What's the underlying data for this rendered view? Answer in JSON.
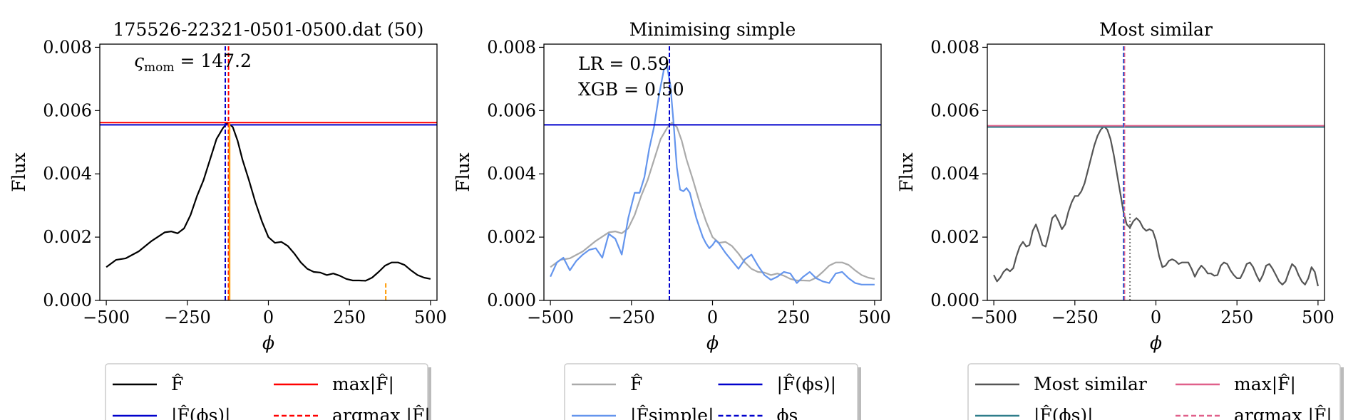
{
  "chart_data": [
    {
      "type": "line",
      "title": "175526-22321-0501-0500.dat (50)",
      "xlabel": "ϕ",
      "ylabel": "Flux",
      "xlim": [
        -520,
        520
      ],
      "ylim": [
        0,
        0.0081
      ],
      "xticks": [
        -500,
        -250,
        0,
        250,
        500
      ],
      "xtick_labels": [
        "−500",
        "−250",
        "0",
        "250",
        "500"
      ],
      "yticks": [
        0,
        0.002,
        0.004,
        0.006,
        0.008
      ],
      "ytick_labels": [
        "0.000",
        "0.002",
        "0.004",
        "0.006",
        "0.008"
      ],
      "annotations": [
        "ς",
        "mom",
        " = 147.2"
      ],
      "series": [
        {
          "name": "F̂",
          "color": "#000000",
          "style": "solid",
          "x": [
            -500,
            -470,
            -440,
            -400,
            -360,
            -320,
            -300,
            -280,
            -260,
            -240,
            -220,
            -200,
            -180,
            -160,
            -140,
            -125,
            -110,
            -95,
            -80,
            -60,
            -40,
            -20,
            0,
            20,
            40,
            60,
            80,
            100,
            120,
            140,
            160,
            180,
            200,
            220,
            240,
            260,
            280,
            300,
            320,
            340,
            360,
            380,
            400,
            420,
            440,
            460,
            480,
            500
          ],
          "y": [
            0.00105,
            0.00128,
            0.00133,
            0.00155,
            0.00188,
            0.00215,
            0.00218,
            0.00212,
            0.00228,
            0.0027,
            0.0033,
            0.0038,
            0.00445,
            0.0051,
            0.00545,
            0.00562,
            0.00548,
            0.00505,
            0.00445,
            0.0038,
            0.0031,
            0.0025,
            0.002,
            0.00182,
            0.00185,
            0.00172,
            0.00148,
            0.0012,
            0.001,
            0.0009,
            0.00088,
            0.0008,
            0.00085,
            0.00078,
            0.00068,
            0.00063,
            0.00063,
            0.00062,
            0.00072,
            0.0009,
            0.0011,
            0.0012,
            0.0012,
            0.00112,
            0.00095,
            0.0008,
            0.00072,
            0.00068
          ]
        },
        {
          "name": "|F̂(ϕs)|",
          "color": "#0000cc",
          "style": "hline",
          "y": 0.00555
        },
        {
          "name": "max|F̂|",
          "color": "#ff0000",
          "style": "hline",
          "y": 0.00562
        },
        {
          "name": "argmax |F̂|",
          "color": "#ff0000",
          "style": "vdash",
          "x": -123
        },
        {
          "name": "ϕs",
          "color": "#0000cc",
          "style": "vdash",
          "x": -133
        },
        {
          "name": "orange",
          "color": "#ff9900",
          "style": "vsolid",
          "x": -120,
          "y": 0.0056
        },
        {
          "name": "orange-dashed",
          "color": "#ff9900",
          "style": "vdash",
          "x": 362,
          "y": 0.0006
        }
      ],
      "legend": {
        "placement": "below",
        "entries": [
          {
            "label": "F̂",
            "color": "#000000",
            "style": "solid"
          },
          {
            "label": "max|F̂|",
            "color": "#ff0000",
            "style": "solid"
          },
          {
            "label": "|F̂(ϕs)|",
            "color": "#0000cc",
            "style": "solid"
          },
          {
            "label": "argmax |F̂|",
            "color": "#ff0000",
            "style": "dash"
          }
        ]
      }
    },
    {
      "type": "line",
      "title": "Minimising simple",
      "xlabel": "ϕ",
      "ylabel": "Flux",
      "xlim": [
        -520,
        520
      ],
      "ylim": [
        0,
        0.0081
      ],
      "xticks": [
        -500,
        -250,
        0,
        250,
        500
      ],
      "xtick_labels": [
        "−500",
        "−250",
        "0",
        "250",
        "500"
      ],
      "yticks": [
        0,
        0.002,
        0.004,
        0.006,
        0.008
      ],
      "ytick_labels": [
        "0.000",
        "0.002",
        "0.004",
        "0.006",
        "0.008"
      ],
      "annotations": [
        "LR = 0.59",
        "XGB = 0.50"
      ],
      "series": [
        {
          "name": "F̂",
          "color": "#aaaaaa",
          "style": "solid",
          "x": [
            -500,
            -470,
            -440,
            -400,
            -360,
            -320,
            -300,
            -280,
            -260,
            -240,
            -220,
            -200,
            -180,
            -160,
            -140,
            -125,
            -110,
            -95,
            -80,
            -60,
            -40,
            -20,
            0,
            20,
            40,
            60,
            80,
            100,
            120,
            140,
            160,
            180,
            200,
            220,
            240,
            260,
            280,
            300,
            320,
            340,
            360,
            380,
            400,
            420,
            440,
            460,
            480,
            500
          ],
          "y": [
            0.00105,
            0.00128,
            0.00133,
            0.00155,
            0.00188,
            0.00215,
            0.00218,
            0.00212,
            0.00228,
            0.0027,
            0.0033,
            0.0038,
            0.00445,
            0.0051,
            0.00545,
            0.00562,
            0.00548,
            0.00505,
            0.00445,
            0.0038,
            0.0031,
            0.0025,
            0.002,
            0.00182,
            0.00185,
            0.00172,
            0.00148,
            0.0012,
            0.001,
            0.0009,
            0.00088,
            0.0008,
            0.00085,
            0.00078,
            0.00068,
            0.00063,
            0.00063,
            0.00062,
            0.00072,
            0.0009,
            0.0011,
            0.0012,
            0.0012,
            0.00112,
            0.00095,
            0.0008,
            0.00072,
            0.00068
          ]
        },
        {
          "name": "|F̂simple|",
          "color": "#6495ed",
          "style": "solid",
          "x": [
            -500,
            -480,
            -460,
            -440,
            -420,
            -400,
            -380,
            -360,
            -340,
            -320,
            -300,
            -280,
            -260,
            -240,
            -225,
            -210,
            -195,
            -180,
            -165,
            -150,
            -140,
            -130,
            -120,
            -110,
            -100,
            -90,
            -80,
            -70,
            -60,
            -50,
            -40,
            -30,
            -20,
            -10,
            0,
            10,
            20,
            40,
            60,
            80,
            100,
            120,
            140,
            160,
            180,
            200,
            220,
            240,
            260,
            280,
            300,
            320,
            340,
            360,
            380,
            400,
            420,
            440,
            460,
            480,
            500
          ],
          "y": [
            0.00075,
            0.0012,
            0.00135,
            0.00095,
            0.00125,
            0.00145,
            0.0016,
            0.00165,
            0.00135,
            0.0021,
            0.00195,
            0.00145,
            0.0026,
            0.0034,
            0.0034,
            0.0039,
            0.0048,
            0.0055,
            0.0065,
            0.0073,
            0.0074,
            0.0068,
            0.0056,
            0.0042,
            0.0035,
            0.00345,
            0.00355,
            0.0034,
            0.003,
            0.0026,
            0.0023,
            0.002,
            0.0018,
            0.00165,
            0.00175,
            0.0019,
            0.0018,
            0.0015,
            0.00125,
            0.001,
            0.0013,
            0.00145,
            0.0011,
            0.0008,
            0.00065,
            0.00075,
            0.0009,
            0.00085,
            0.00055,
            0.00075,
            0.0009,
            0.0007,
            0.0006,
            0.00055,
            0.00085,
            0.0009,
            0.0007,
            0.00055,
            0.0005,
            0.0005,
            0.0005
          ]
        },
        {
          "name": "|F̂(ϕs)|",
          "color": "#0000cc",
          "style": "hline",
          "y": 0.00555
        },
        {
          "name": "ϕs",
          "color": "#0000cc",
          "style": "vdash",
          "x": -133
        }
      ],
      "legend": {
        "placement": "below",
        "entries": [
          {
            "label": "F̂",
            "color": "#aaaaaa",
            "style": "solid"
          },
          {
            "label": "|F̂(ϕs)|",
            "color": "#0000cc",
            "style": "solid"
          },
          {
            "label": "|F̂simple|",
            "color": "#6495ed",
            "style": "solid"
          },
          {
            "label": "ϕs",
            "color": "#0000cc",
            "style": "dash"
          }
        ]
      }
    },
    {
      "type": "line",
      "title": "Most similar",
      "xlabel": "ϕ",
      "ylabel": "Flux",
      "xlim": [
        -520,
        520
      ],
      "ylim": [
        0,
        0.0081
      ],
      "xticks": [
        -500,
        -250,
        0,
        250,
        500
      ],
      "xtick_labels": [
        "−500",
        "−250",
        "0",
        "250",
        "500"
      ],
      "yticks": [
        0,
        0.002,
        0.004,
        0.006,
        0.008
      ],
      "ytick_labels": [
        "0.000",
        "0.002",
        "0.004",
        "0.006",
        "0.008"
      ],
      "annotations": [],
      "series": [
        {
          "name": "Most similar",
          "color": "#555555",
          "style": "solid",
          "x": [
            -500,
            -490,
            -480,
            -470,
            -460,
            -450,
            -440,
            -430,
            -420,
            -410,
            -400,
            -390,
            -380,
            -370,
            -360,
            -350,
            -340,
            -330,
            -320,
            -310,
            -300,
            -290,
            -280,
            -270,
            -260,
            -250,
            -240,
            -230,
            -220,
            -210,
            -200,
            -190,
            -180,
            -170,
            -160,
            -150,
            -140,
            -130,
            -120,
            -110,
            -100,
            -90,
            -80,
            -70,
            -60,
            -50,
            -40,
            -30,
            -20,
            -10,
            0,
            10,
            20,
            30,
            40,
            50,
            60,
            70,
            80,
            90,
            100,
            110,
            120,
            130,
            140,
            150,
            160,
            170,
            180,
            190,
            200,
            210,
            220,
            230,
            240,
            250,
            260,
            270,
            280,
            290,
            300,
            310,
            320,
            330,
            340,
            350,
            360,
            370,
            380,
            390,
            400,
            410,
            420,
            430,
            440,
            450,
            460,
            470,
            480,
            490,
            500
          ],
          "y": [
            0.0008,
            0.0006,
            0.00072,
            0.0009,
            0.001,
            0.00092,
            0.00102,
            0.0014,
            0.0017,
            0.00185,
            0.0017,
            0.00175,
            0.0022,
            0.0024,
            0.0021,
            0.00175,
            0.0017,
            0.0021,
            0.0026,
            0.0027,
            0.0025,
            0.00225,
            0.0024,
            0.0028,
            0.0031,
            0.0033,
            0.0033,
            0.00345,
            0.0037,
            0.0041,
            0.0045,
            0.0049,
            0.0052,
            0.0054,
            0.0055,
            0.0054,
            0.0051,
            0.0046,
            0.004,
            0.0034,
            0.0028,
            0.0024,
            0.0023,
            0.0025,
            0.0026,
            0.0025,
            0.0023,
            0.0022,
            0.00225,
            0.0022,
            0.0019,
            0.0014,
            0.00105,
            0.0011,
            0.00125,
            0.0013,
            0.00125,
            0.00115,
            0.0012,
            0.0012,
            0.0012,
            0.001,
            0.00075,
            0.00095,
            0.0011,
            0.001,
            0.00085,
            0.00085,
            0.00078,
            0.0008,
            0.0011,
            0.0012,
            0.00115,
            0.00095,
            0.0008,
            0.0007,
            0.0007,
            0.0009,
            0.00115,
            0.0012,
            0.00105,
            0.0008,
            0.0006,
            0.0008,
            0.0011,
            0.00115,
            0.001,
            0.0008,
            0.0006,
            0.0005,
            0.0006,
            0.0009,
            0.00115,
            0.00105,
            0.0008,
            0.0006,
            0.0005,
            0.0007,
            0.00105,
            0.0009,
            0.00045
          ]
        },
        {
          "name": "|F̂(ϕs)|",
          "color": "#2e7d8a",
          "style": "hline",
          "y": 0.00548
        },
        {
          "name": "max|F̂|",
          "color": "#e0608a",
          "style": "hline",
          "y": 0.00552
        },
        {
          "name": "argmax |F̂|",
          "color": "#e0608a",
          "style": "vdash",
          "x": -97
        },
        {
          "name": "ϕs",
          "color": "#3a5fcd",
          "style": "vdash",
          "x": -100
        },
        {
          "name": "dotted",
          "color": "#777777",
          "style": "vdot",
          "x": -80,
          "y": 0.0028
        }
      ],
      "legend": {
        "placement": "below",
        "entries": [
          {
            "label": "Most similar",
            "color": "#555555",
            "style": "solid"
          },
          {
            "label": "max|F̂|",
            "color": "#e0608a",
            "style": "solid"
          },
          {
            "label": "|F̂(ϕs)|",
            "color": "#2e7d8a",
            "style": "solid"
          },
          {
            "label": "argmax |F̂|",
            "color": "#e0608a",
            "style": "dash"
          }
        ]
      }
    }
  ]
}
